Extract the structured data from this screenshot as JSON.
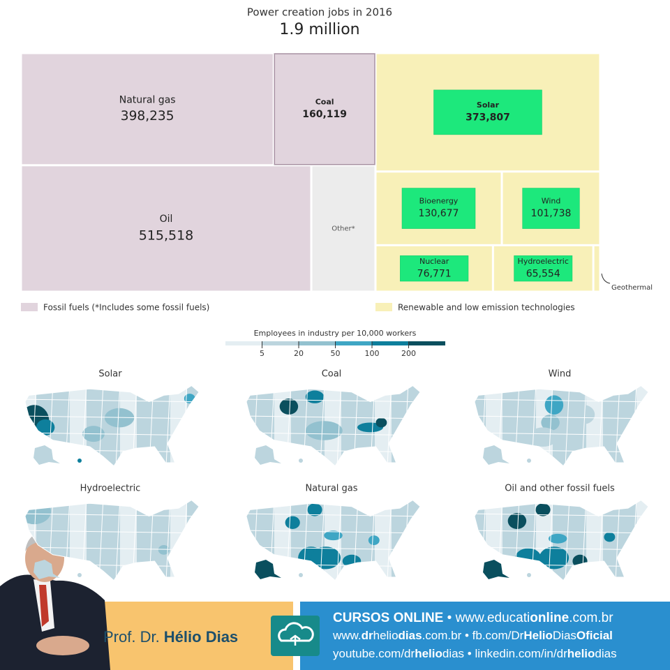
{
  "chart_data": {
    "type": "treemap",
    "title": "Power creation jobs in 2016",
    "subtitle": "1.9 million",
    "groups": [
      {
        "name": "Fossil fuels (*Includes some fossil fuels)",
        "color": "#e1d4dd",
        "rows": [
          [
            {
              "label": "Natural gas",
              "value": 398235,
              "value_label": "398,235"
            },
            {
              "label": "Coal",
              "value": 160119,
              "value_label": "160,119",
              "bold": true
            }
          ],
          [
            {
              "label": "Oil",
              "value": 515518,
              "value_label": "515,518"
            },
            {
              "label": "Other*",
              "value": 114000,
              "color": "#ececec"
            }
          ]
        ]
      },
      {
        "name": "Renewable and low emission technologies",
        "color": "#f8f0b8",
        "highlight": "#1de87c",
        "rows": [
          [
            {
              "label": "Solar",
              "value": 373807,
              "value_label": "373,807",
              "bold": true
            }
          ],
          [
            {
              "label": "Bioenergy",
              "value": 130677,
              "value_label": "130,677"
            },
            {
              "label": "Wind",
              "value": 101738,
              "value_label": "101,738"
            }
          ],
          [
            {
              "label": "Nuclear",
              "value": 76771,
              "value_label": "76,771"
            },
            {
              "label": "Hydroelectric",
              "value": 65554,
              "value_label": "65,554"
            },
            {
              "label": "Geothermal",
              "value": 4500
            }
          ]
        ]
      }
    ]
  },
  "map_legend": {
    "title": "Employees in industry per 10,000 workers",
    "ticks": [
      5,
      20,
      50,
      100,
      200
    ],
    "colors": [
      "#e4eef2",
      "#bcd5de",
      "#93c1cf",
      "#3fa6c4",
      "#0e7f9c",
      "#0a4f5e"
    ]
  },
  "maps": [
    {
      "title": "Solar"
    },
    {
      "title": "Coal"
    },
    {
      "title": "Wind"
    },
    {
      "title": "Hydroelectric"
    },
    {
      "title": "Natural gas"
    },
    {
      "title": "Oil and other fossil fuels"
    }
  ],
  "banner": {
    "name": [
      {
        "text": "Prof. Dr. "
      },
      {
        "text": "Hélio Dias",
        "bold": true
      }
    ],
    "lines": [
      [
        {
          "text": "CURSOS ONLINE",
          "bold": true
        },
        {
          "text": " • www.educati"
        },
        {
          "text": "online",
          "bold": true
        },
        {
          "text": ".com.br"
        }
      ],
      [
        {
          "text": "www."
        },
        {
          "text": "dr",
          "bold": true
        },
        {
          "text": "helio"
        },
        {
          "text": "dias",
          "bold": true
        },
        {
          "text": ".com.br • fb.com/Dr"
        },
        {
          "text": "Helio",
          "bold": true
        },
        {
          "text": "Dias"
        },
        {
          "text": "Oficial",
          "bold": true
        }
      ],
      [
        {
          "text": "youtube.com/dr"
        },
        {
          "text": "helio",
          "bold": true
        },
        {
          "text": "dias • linkedin.com/in/dr"
        },
        {
          "text": "helio",
          "bold": true
        },
        {
          "text": "dias"
        }
      ]
    ]
  }
}
